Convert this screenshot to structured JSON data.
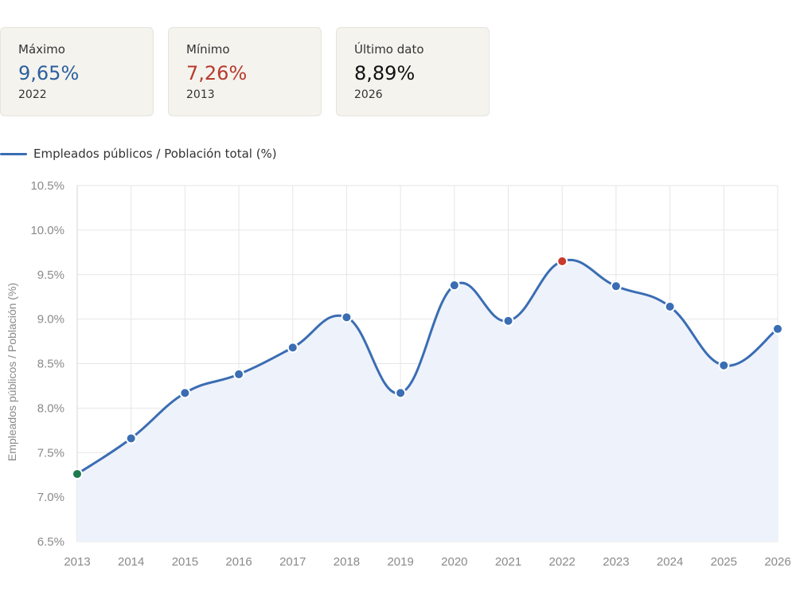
{
  "stats": [
    {
      "label": "Máximo",
      "value": "9,65%",
      "year": "2022",
      "color": "#2c5f9e"
    },
    {
      "label": "Mínimo",
      "value": "7,26%",
      "year": "2013",
      "color": "#b83a2e"
    },
    {
      "label": "Último dato",
      "value": "8,89%",
      "year": "2026",
      "color": "#111111"
    }
  ],
  "chart_data": {
    "type": "line",
    "categories": [
      "2013",
      "2014",
      "2015",
      "2016",
      "2017",
      "2018",
      "2019",
      "2020",
      "2021",
      "2022",
      "2023",
      "2024",
      "2025",
      "2026"
    ],
    "series": [
      {
        "name": "Empleados públicos / Población total (%)",
        "values": [
          7.26,
          7.66,
          8.17,
          8.38,
          8.68,
          9.02,
          8.17,
          9.38,
          8.98,
          9.65,
          9.37,
          9.14,
          8.48,
          8.89
        ],
        "color": "#3a6db3"
      }
    ],
    "ylabel": "Empleados públicos / Población (%)",
    "ylim": [
      6.5,
      10.5
    ],
    "yticks": [
      "6.5%",
      "7.0%",
      "7.5%",
      "8.0%",
      "8.5%",
      "9.0%",
      "9.5%",
      "10.0%",
      "10.5%"
    ],
    "grid": true,
    "area_fill": "#eef2fa",
    "max_point_color": "#c9392c",
    "min_point_color": "#1f7a4d",
    "legend_position": "top-left"
  }
}
